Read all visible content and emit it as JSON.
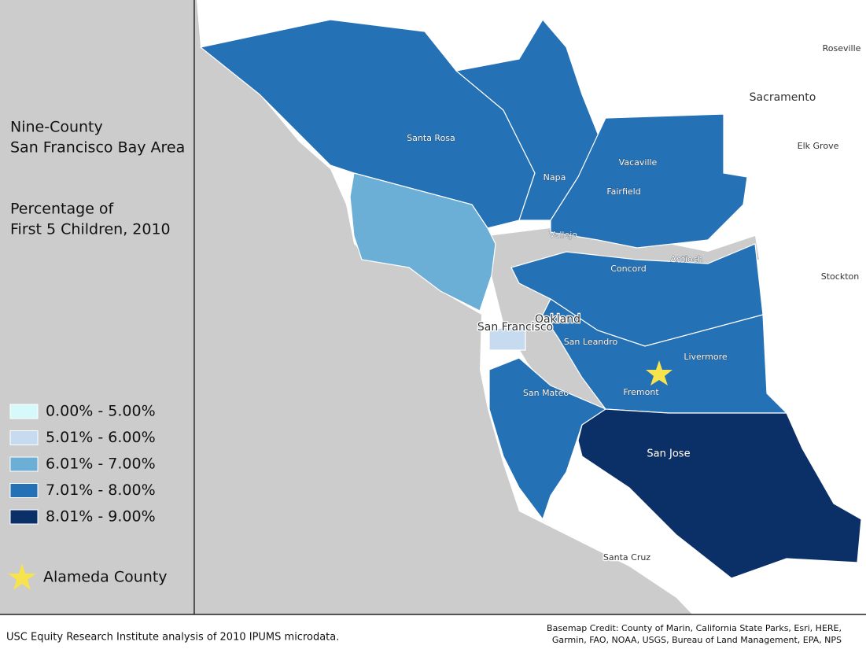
{
  "sidebar": {
    "title_lines": [
      "Nine-County",
      "San Francisco Bay Area"
    ],
    "subtitle_lines": [
      "Percentage of",
      "First 5 Children, 2010"
    ],
    "legend": [
      {
        "label": "0.00% - 5.00%",
        "color": "#d6fafc"
      },
      {
        "label": "5.01% - 6.00%",
        "color": "#c6dbef"
      },
      {
        "label": "6.01% - 7.00%",
        "color": "#6baed6"
      },
      {
        "label": "7.01% - 8.00%",
        "color": "#2471b5"
      },
      {
        "label": "8.01% - 9.00%",
        "color": "#0b3068"
      }
    ],
    "marker": {
      "label": "Alameda County",
      "color": "#f7e34d"
    }
  },
  "map": {
    "places": [
      {
        "label": "Roseville"
      },
      {
        "label": "Sacramento"
      },
      {
        "label": "Elk Grove"
      },
      {
        "label": "Stockton"
      },
      {
        "label": "Santa Rosa"
      },
      {
        "label": "Napa"
      },
      {
        "label": "Vacaville"
      },
      {
        "label": "Fairfield"
      },
      {
        "label": "Vallejo"
      },
      {
        "label": "Antioch"
      },
      {
        "label": "Concord"
      },
      {
        "label": "Oakland"
      },
      {
        "label": "San Francisco"
      },
      {
        "label": "San Leandro"
      },
      {
        "label": "Livermore"
      },
      {
        "label": "Fremont"
      },
      {
        "label": "San Mateo"
      },
      {
        "label": "San Jose"
      },
      {
        "label": "Santa Cruz"
      }
    ]
  },
  "footer": {
    "source": "USC Equity Research Institute analysis of 2010 IPUMS microdata.",
    "credit_lines": [
      "Basemap Credit: County of Marin, California State Parks, Esri, HERE,",
      "Garmin, FAO, NOAA, USGS, Bureau of Land Management, EPA, NPS"
    ]
  }
}
